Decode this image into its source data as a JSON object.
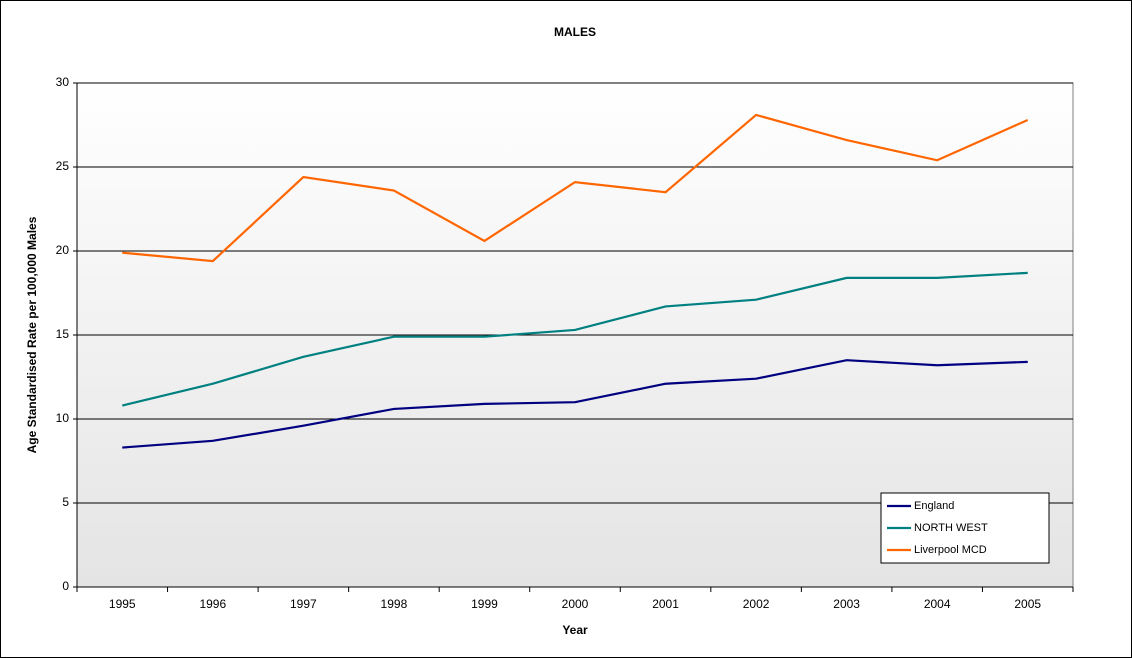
{
  "chart_data": {
    "type": "line",
    "title": "MALES",
    "x_label": "Year",
    "y_label": "Age Standardised Rate per 100,000 Males",
    "categories": [
      "1995",
      "1996",
      "1997",
      "1998",
      "1999",
      "2000",
      "2001",
      "2002",
      "2003",
      "2004",
      "2005"
    ],
    "series": [
      {
        "name": "England",
        "color": "#000080",
        "values": [
          8.3,
          8.7,
          9.6,
          10.6,
          10.9,
          11.0,
          12.1,
          12.4,
          13.5,
          13.2,
          13.4
        ]
      },
      {
        "name": "NORTH WEST",
        "color": "#008080",
        "values": [
          10.8,
          12.1,
          13.7,
          14.9,
          14.9,
          15.3,
          16.7,
          17.1,
          18.4,
          18.4,
          18.7
        ]
      },
      {
        "name": "Liverpool MCD",
        "color": "#ff6600",
        "values": [
          19.9,
          19.4,
          24.4,
          23.6,
          20.6,
          24.1,
          23.5,
          28.1,
          26.6,
          25.4,
          27.8
        ]
      }
    ],
    "ylim": [
      0,
      30
    ],
    "yticks": [
      0,
      5,
      10,
      15,
      20,
      25,
      30
    ],
    "grid": true,
    "legend": "lower right"
  }
}
